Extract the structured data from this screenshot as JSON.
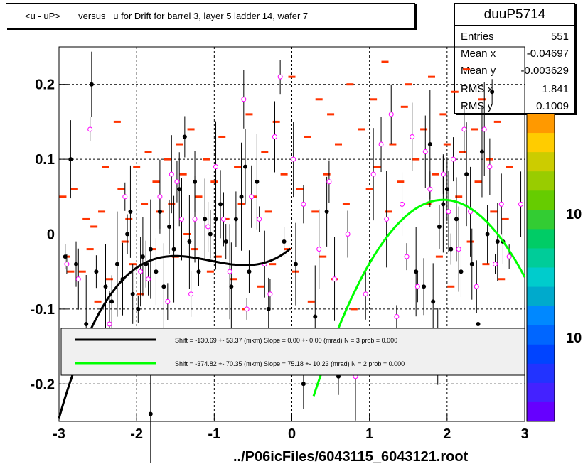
{
  "title": "<u - uP>       versus   u for Drift for barrel 3, layer 5 ladder 14, wafer 7",
  "footer": "../P06icFiles/6043115_6043121.root",
  "stats": {
    "name": "duuP5714",
    "rows": [
      {
        "label": "Entries",
        "value": "551"
      },
      {
        "label": "Mean x",
        "value": "-0.04697"
      },
      {
        "label": "Mean y",
        "value": "-0.003629"
      },
      {
        "label": "RMS x",
        "value": "1.841"
      },
      {
        "label": "RMS y",
        "value": "0.1009"
      }
    ]
  },
  "legend": [
    {
      "text": "Shift =  -130.69 +- 53.37 (mkm) Slope =     0.00 +- 0.00 (mrad)  N = 3 prob = 0.000",
      "color": "#000000"
    },
    {
      "text": "Shift =  -374.82 +- 70.35 (mkm) Slope =    75.18 +- 10.23 (mrad)  N = 2 prob = 0.000",
      "color": "#00ff00"
    }
  ],
  "palette_labels": [
    "10",
    "10"
  ],
  "chart_data": {
    "type": "scatter",
    "xlim": [
      -3,
      3
    ],
    "ylim": [
      -0.25,
      0.25
    ],
    "x_ticks": [
      -3,
      -2,
      -1,
      0,
      1,
      2,
      3
    ],
    "y_ticks": [
      -0.2,
      -0.1,
      0,
      0.1,
      0.2
    ],
    "x_tick_labels": [
      "-3",
      "-2",
      "-1",
      "0",
      "1",
      "2",
      "3"
    ],
    "y_tick_labels": [
      "-0.2",
      "-0.1",
      "0",
      "0.1",
      "0.2"
    ],
    "grid": true,
    "colz_bins": [
      [
        -2.95,
        0.05
      ],
      [
        -2.9,
        -0.03
      ],
      [
        -2.85,
        -0.05
      ],
      [
        -2.8,
        0.06
      ],
      [
        -2.7,
        -0.05
      ],
      [
        -2.65,
        0.02
      ],
      [
        -2.6,
        -0.02
      ],
      [
        -2.55,
        0.01
      ],
      [
        -2.5,
        -0.09
      ],
      [
        -2.45,
        0.03
      ],
      [
        -2.4,
        0.09
      ],
      [
        -2.35,
        -0.06
      ],
      [
        -2.25,
        0.15
      ],
      [
        -2.2,
        0.06
      ],
      [
        -2.15,
        -0.01
      ],
      [
        -2.1,
        0.02
      ],
      [
        -2.05,
        -0.04
      ],
      [
        -2.0,
        0.09
      ],
      [
        -1.95,
        -0.08
      ],
      [
        -1.9,
        0.04
      ],
      [
        -1.85,
        0.11
      ],
      [
        -1.8,
        -0.02
      ],
      [
        -1.75,
        0.07
      ],
      [
        -1.7,
        0.03
      ],
      [
        -1.6,
        0.1
      ],
      [
        -1.55,
        0.04
      ],
      [
        -1.5,
        -0.03
      ],
      [
        -1.45,
        0.12
      ],
      [
        -1.4,
        0.08
      ],
      [
        -1.35,
        0.0
      ],
      [
        -1.3,
        0.14
      ],
      [
        -1.25,
        -0.02
      ],
      [
        -1.2,
        0.05
      ],
      [
        -1.1,
        0.1
      ],
      [
        -1.05,
        -0.05
      ],
      [
        -1.0,
        0.07
      ],
      [
        -0.95,
        -0.03
      ],
      [
        -0.9,
        0.13
      ],
      [
        -0.85,
        0.02
      ],
      [
        -0.75,
        -0.06
      ],
      [
        -0.7,
        0.09
      ],
      [
        -0.65,
        0.04
      ],
      [
        -0.6,
        -0.1
      ],
      [
        -0.55,
        0.16
      ],
      [
        -0.5,
        0.05
      ],
      [
        -0.4,
        -0.07
      ],
      [
        -0.35,
        0.11
      ],
      [
        -0.3,
        0.03
      ],
      [
        -0.25,
        -0.04
      ],
      [
        -0.2,
        0.15
      ],
      [
        -0.1,
        0.08
      ],
      [
        -0.05,
        -0.02
      ],
      [
        0.0,
        0.21
      ],
      [
        0.05,
        -0.05
      ],
      [
        0.1,
        0.06
      ],
      [
        0.2,
        0.13
      ],
      [
        0.25,
        -0.09
      ],
      [
        0.3,
        0.03
      ],
      [
        0.35,
        0.18
      ],
      [
        0.4,
        -0.03
      ],
      [
        0.45,
        0.08
      ],
      [
        0.5,
        0.16
      ],
      [
        0.55,
        -0.06
      ],
      [
        0.6,
        0.12
      ],
      [
        0.7,
        0.04
      ],
      [
        0.75,
        0.2
      ],
      [
        0.8,
        -0.1
      ],
      [
        0.9,
        0.14
      ],
      [
        1.0,
        0.06
      ],
      [
        1.05,
        0.18
      ],
      [
        1.1,
        0.09
      ],
      [
        1.2,
        0.23
      ],
      [
        1.25,
        0.03
      ],
      [
        1.3,
        0.12
      ],
      [
        1.4,
        0.07
      ],
      [
        1.45,
        0.17
      ],
      [
        1.5,
        0.2
      ],
      [
        1.6,
        0.1
      ],
      [
        1.7,
        0.14
      ],
      [
        1.75,
        0.04
      ],
      [
        1.8,
        0.21
      ],
      [
        1.85,
        0.08
      ],
      [
        1.9,
        -0.03
      ],
      [
        1.95,
        0.16
      ],
      [
        2.0,
        0.12
      ],
      [
        2.05,
        -0.07
      ],
      [
        2.1,
        0.19
      ],
      [
        2.15,
        0.05
      ],
      [
        2.2,
        0.11
      ],
      [
        2.25,
        0.22
      ],
      [
        2.3,
        -0.01
      ],
      [
        2.35,
        0.14
      ],
      [
        2.4,
        0.07
      ],
      [
        2.45,
        0.18
      ],
      [
        2.5,
        -0.04
      ],
      [
        2.55,
        0.1
      ],
      [
        2.6,
        0.03
      ],
      [
        2.65,
        0.15
      ],
      [
        2.7,
        -0.06
      ],
      [
        2.75,
        0.02
      ],
      [
        2.8,
        0.09
      ]
    ],
    "profile_points": [
      [
        -2.92,
        -0.03
      ],
      [
        -2.85,
        0.1
      ],
      [
        -2.78,
        -0.04
      ],
      [
        -2.65,
        -0.12
      ],
      [
        -2.58,
        0.2
      ],
      [
        -2.52,
        -0.05
      ],
      [
        -2.4,
        -0.07
      ],
      [
        -2.32,
        -0.09
      ],
      [
        -2.25,
        -0.04
      ],
      [
        -2.18,
        -0.06
      ],
      [
        -2.12,
        0.0
      ],
      [
        -2.08,
        0.03
      ],
      [
        -2.05,
        -0.08
      ],
      [
        -1.98,
        -0.1
      ],
      [
        -1.92,
        -0.03
      ],
      [
        -1.88,
        -0.04
      ],
      [
        -1.82,
        -0.02
      ],
      [
        -1.75,
        -0.05
      ],
      [
        -1.7,
        0.03
      ],
      [
        -1.65,
        -0.07
      ],
      [
        -1.58,
        0.01
      ],
      [
        -1.52,
        -0.02
      ],
      [
        -1.45,
        0.06
      ],
      [
        -1.38,
        0.13
      ],
      [
        -1.32,
        -0.01
      ],
      [
        -1.25,
        0.07
      ],
      [
        -1.2,
        -0.05
      ],
      [
        -1.12,
        0.02
      ],
      [
        -1.05,
        0.0
      ],
      [
        -0.98,
        0.02
      ],
      [
        -0.92,
        0.04
      ],
      [
        -0.85,
        -0.01
      ],
      [
        -0.78,
        -0.07
      ],
      [
        -0.72,
        0.02
      ],
      [
        -0.65,
        0.05
      ],
      [
        -0.6,
        0.09
      ],
      [
        -0.55,
        -0.05
      ],
      [
        -0.45,
        0.07
      ],
      [
        -0.3,
        -0.1
      ],
      [
        -0.1,
        -0.01
      ],
      [
        0.05,
        -0.04
      ],
      [
        0.15,
        -0.2
      ],
      [
        0.3,
        -0.11
      ],
      [
        0.45,
        0.03
      ],
      [
        0.6,
        -0.19
      ],
      [
        1.6,
        -0.05
      ],
      [
        1.7,
        -0.07
      ],
      [
        1.78,
        0.12
      ],
      [
        1.82,
        -0.09
      ],
      [
        1.9,
        0.01
      ],
      [
        1.95,
        0.04
      ],
      [
        2.0,
        0.06
      ],
      [
        2.05,
        -0.02
      ],
      [
        2.12,
        0.02
      ],
      [
        2.18,
        -0.05
      ],
      [
        2.25,
        0.08
      ],
      [
        2.32,
        -0.04
      ],
      [
        2.4,
        -0.12
      ],
      [
        2.45,
        0.11
      ],
      [
        2.52,
        0.0
      ],
      [
        2.58,
        0.19
      ],
      [
        2.65,
        -0.01
      ],
      [
        2.72,
        -0.01
      ],
      [
        -1.82,
        -0.24
      ]
    ],
    "open_markers": [
      [
        -2.9,
        -0.04
      ],
      [
        -2.75,
        -0.06
      ],
      [
        -2.6,
        0.14
      ],
      [
        -2.35,
        -0.12
      ],
      [
        -2.15,
        0.05
      ],
      [
        -1.95,
        -0.05
      ],
      [
        -1.85,
        -0.06
      ],
      [
        -1.7,
        0.05
      ],
      [
        -1.6,
        -0.09
      ],
      [
        -1.55,
        0.08
      ],
      [
        -1.48,
        0.07
      ],
      [
        -1.42,
        0.02
      ],
      [
        -1.3,
        -0.08
      ],
      [
        -1.25,
        0.02
      ],
      [
        -1.08,
        0.01
      ],
      [
        -0.98,
        0.09
      ],
      [
        -0.88,
        0.02
      ],
      [
        -0.8,
        -0.05
      ],
      [
        -0.62,
        0.18
      ],
      [
        -0.58,
        -0.1
      ],
      [
        -0.52,
        0.05
      ],
      [
        -0.42,
        0.02
      ],
      [
        -0.35,
        -0.04
      ],
      [
        -0.28,
        -0.08
      ],
      [
        -0.22,
        0.13
      ],
      [
        -0.15,
        0.21
      ],
      [
        0.02,
        0.1
      ],
      [
        0.15,
        0.04
      ],
      [
        0.35,
        -0.02
      ],
      [
        0.48,
        0.07
      ],
      [
        0.55,
        -0.06
      ],
      [
        0.72,
        0.0
      ],
      [
        0.82,
        -0.19
      ],
      [
        0.95,
        -0.08
      ],
      [
        1.05,
        0.08
      ],
      [
        1.15,
        0.12
      ],
      [
        1.22,
        0.02
      ],
      [
        1.28,
        0.16
      ],
      [
        1.35,
        -0.11
      ],
      [
        1.42,
        0.04
      ],
      [
        1.48,
        -0.03
      ],
      [
        1.55,
        0.13
      ],
      [
        1.62,
        -0.07
      ],
      [
        1.72,
        0.11
      ],
      [
        1.78,
        0.06
      ],
      [
        1.88,
        -0.15
      ],
      [
        1.95,
        0.08
      ],
      [
        2.02,
        0.03
      ],
      [
        2.08,
        0.1
      ],
      [
        2.15,
        -0.02
      ],
      [
        2.22,
        0.14
      ],
      [
        2.3,
        0.03
      ],
      [
        2.38,
        -0.07
      ],
      [
        2.48,
        0.14
      ],
      [
        2.55,
        0.09
      ],
      [
        2.62,
        -0.04
      ],
      [
        2.7,
        0.04
      ],
      [
        2.8,
        -0.03
      ],
      [
        2.95,
        0.04
      ]
    ],
    "fits": [
      {
        "color": "#000000",
        "xrange": [
          -3.0,
          -0.02
        ],
        "coeffs": [
          -0.0176,
          0.0916,
          0.1066,
          0.0338
        ]
      },
      {
        "color": "#00ff00",
        "xrange": [
          0.28,
          3.0
        ],
        "coeffs": [
          -0.3114,
          0.3661,
          -0.0938
        ]
      }
    ]
  }
}
